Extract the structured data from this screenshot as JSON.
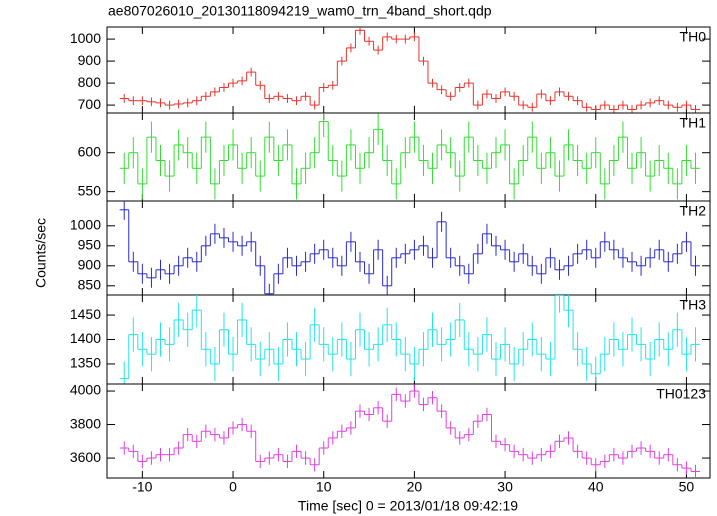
{
  "chart_data": {
    "type": "step",
    "title": "ae807026010_20130118094219_wam0_trn_4band_short.qdp",
    "y_label": "Counts/sec",
    "x_label": "Time [sec] 0 = 2013/01/18 09:42:19",
    "xlim": [
      -13.9,
      52.6
    ],
    "xticks": [
      -10,
      0,
      10,
      20,
      30,
      40,
      50
    ],
    "xerr": 0.5,
    "x": [
      -12,
      -11,
      -10,
      -9,
      -8,
      -7,
      -6,
      -5,
      -4,
      -3,
      -2,
      -1,
      0,
      1,
      2,
      3,
      4,
      5,
      6,
      7,
      8,
      9,
      10,
      11,
      12,
      13,
      14,
      15,
      16,
      17,
      18,
      19,
      20,
      21,
      22,
      23,
      24,
      25,
      26,
      27,
      28,
      29,
      30,
      31,
      32,
      33,
      34,
      35,
      36,
      37,
      38,
      39,
      40,
      41,
      42,
      43,
      44,
      45,
      46,
      47,
      48,
      49,
      50,
      51
    ],
    "series": [
      {
        "name": "TH0",
        "color": "#e8332b",
        "ylim": [
          664,
          1055
        ],
        "yticks": [
          700,
          800,
          900,
          1000
        ],
        "yerr": 20,
        "values": [
          730,
          720,
          720,
          715,
          710,
          700,
          705,
          710,
          720,
          740,
          760,
          780,
          800,
          810,
          850,
          790,
          730,
          740,
          730,
          720,
          740,
          700,
          780,
          790,
          900,
          960,
          1040,
          990,
          950,
          1010,
          1000,
          1000,
          1010,
          900,
          800,
          770,
          740,
          780,
          800,
          700,
          750,
          730,
          760,
          740,
          700,
          690,
          750,
          720,
          760,
          740,
          720,
          690,
          680,
          700,
          680,
          700,
          680,
          700,
          710,
          720,
          700,
          690,
          700,
          680
        ]
      },
      {
        "name": "TH1",
        "color": "#33dd33",
        "ylim": [
          538,
          651
        ],
        "yticks": [
          550,
          600
        ],
        "yerr": 20,
        "values": [
          580,
          600,
          560,
          620,
          590,
          570,
          610,
          600,
          580,
          620,
          560,
          590,
          610,
          580,
          600,
          570,
          620,
          590,
          610,
          560,
          580,
          600,
          640,
          590,
          570,
          610,
          580,
          600,
          630,
          590,
          560,
          600,
          620,
          590,
          580,
          610,
          600,
          570,
          620,
          590,
          580,
          600,
          610,
          560,
          590,
          620,
          580,
          600,
          570,
          610,
          590,
          580,
          600,
          560,
          590,
          620,
          580,
          600,
          570,
          590,
          580,
          560,
          590,
          580
        ]
      },
      {
        "name": "TH2",
        "color": "#2a2acc",
        "ylim": [
          827,
          1062
        ],
        "yticks": [
          850,
          900,
          950,
          1000
        ],
        "yerr": 25,
        "values": [
          1040,
          910,
          880,
          870,
          890,
          880,
          900,
          920,
          910,
          950,
          980,
          970,
          960,
          950,
          960,
          900,
          830,
          880,
          920,
          900,
          910,
          930,
          940,
          920,
          900,
          960,
          910,
          880,
          940,
          850,
          920,
          930,
          940,
          950,
          920,
          1010,
          920,
          900,
          880,
          930,
          980,
          950,
          940,
          910,
          930,
          900,
          880,
          920,
          890,
          900,
          930,
          940,
          920,
          960,
          940,
          920,
          910,
          900,
          920,
          940,
          910,
          930,
          960,
          900
        ]
      },
      {
        "name": "TH3",
        "color": "#22e5e5",
        "ylim": [
          1309,
          1491
        ],
        "yticks": [
          1350,
          1400,
          1450
        ],
        "yerr": 35,
        "values": [
          1320,
          1410,
          1380,
          1370,
          1400,
          1390,
          1440,
          1420,
          1460,
          1380,
          1350,
          1420,
          1370,
          1440,
          1390,
          1360,
          1380,
          1350,
          1400,
          1380,
          1360,
          1430,
          1390,
          1370,
          1400,
          1360,
          1420,
          1380,
          1390,
          1430,
          1400,
          1370,
          1350,
          1380,
          1420,
          1390,
          1400,
          1440,
          1380,
          1370,
          1410,
          1360,
          1390,
          1350,
          1380,
          1400,
          1370,
          1360,
          1490,
          1460,
          1380,
          1350,
          1330,
          1370,
          1400,
          1380,
          1410,
          1390,
          1360,
          1400,
          1380,
          1420,
          1370,
          1390
        ]
      },
      {
        "name": "TH0123",
        "color": "#e040e0",
        "ylim": [
          3481,
          4042
        ],
        "yticks": [
          3600,
          3800,
          4000
        ],
        "yerr": 40,
        "values": [
          3660,
          3640,
          3580,
          3600,
          3620,
          3620,
          3660,
          3740,
          3700,
          3760,
          3740,
          3720,
          3780,
          3800,
          3760,
          3580,
          3600,
          3620,
          3580,
          3640,
          3600,
          3560,
          3660,
          3720,
          3760,
          3780,
          3880,
          3860,
          3900,
          3820,
          3980,
          3940,
          4000,
          3920,
          3960,
          3880,
          3780,
          3720,
          3740,
          3820,
          3860,
          3700,
          3680,
          3640,
          3620,
          3600,
          3620,
          3640,
          3700,
          3720,
          3640,
          3600,
          3560,
          3580,
          3620,
          3600,
          3640,
          3660,
          3640,
          3600,
          3620,
          3560,
          3540,
          3520
        ]
      }
    ]
  }
}
